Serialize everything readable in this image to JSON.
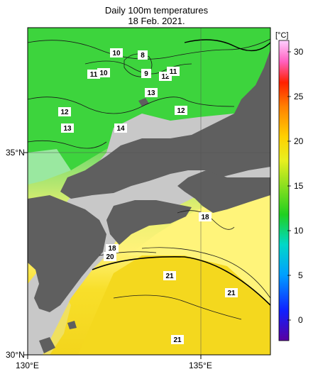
{
  "header": {
    "title_line1": "Daily 100m temperatures",
    "title_line2": "18 Feb. 2021."
  },
  "axes": {
    "lat_labels": [
      "35°N",
      "30°N"
    ],
    "lon_labels": [
      "130°E",
      "135°E"
    ]
  },
  "colorbar": {
    "unit": "[°C]",
    "ticks": [
      "30",
      "25",
      "20",
      "15",
      "10",
      "5",
      "0"
    ],
    "range": [
      -2,
      32
    ]
  },
  "contour_labels": [
    "8",
    "10",
    "9",
    "11",
    "10",
    "12",
    "11",
    "13",
    "12",
    "12",
    "13",
    "14",
    "18",
    "18",
    "20",
    "21",
    "21",
    "21"
  ],
  "colors": {
    "land": "#5f5f5f",
    "shelf": "#c8c8c8",
    "warm": "#f5dc25",
    "cool": "#3cd23c"
  }
}
